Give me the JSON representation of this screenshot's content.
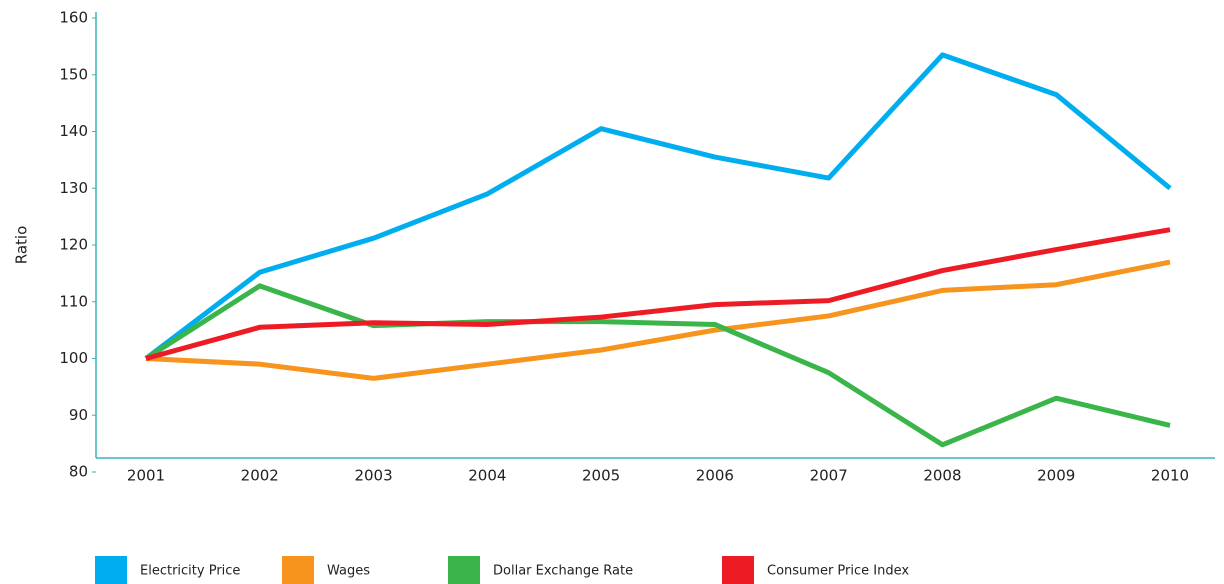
{
  "chart_data": {
    "type": "line",
    "y_label": "Ratio",
    "categories": [
      "2001",
      "2002",
      "2003",
      "2004",
      "2005",
      "2006",
      "2007",
      "2008",
      "2009",
      "2010"
    ],
    "series": [
      {
        "name": "Electricity Price",
        "color": "#00aeef",
        "values": [
          100,
          115.2,
          121.2,
          129,
          140.5,
          135.5,
          131.8,
          153.5,
          146.5,
          130
        ]
      },
      {
        "name": "Wages",
        "color": "#f7941d",
        "values": [
          100,
          99,
          96.5,
          99,
          101.5,
          105,
          107.5,
          112,
          113,
          117
        ]
      },
      {
        "name": "Dollar Exchange Rate",
        "color": "#39b54a",
        "values": [
          100,
          112.8,
          105.8,
          106.5,
          106.5,
          106,
          97.5,
          84.8,
          93,
          88.2
        ]
      },
      {
        "name": "Consumer Price Index",
        "color": "#ed1c24",
        "values": [
          100,
          105.5,
          106.3,
          106,
          107.3,
          109.5,
          110.2,
          115.5,
          119.2,
          122.7
        ]
      }
    ],
    "ylim": [
      80,
      160
    ],
    "yticks": [
      80,
      90,
      100,
      110,
      120,
      130,
      140,
      150,
      160
    ],
    "legend": "bottom"
  }
}
